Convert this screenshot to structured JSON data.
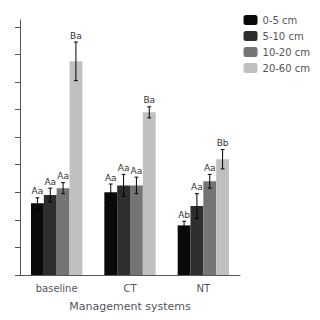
{
  "chart_data": {
    "type": "bar",
    "xlabel": "Management systems",
    "categories": [
      "baseline",
      "CT",
      "NT"
    ],
    "series": [
      {
        "name": "0-5 cm",
        "color": "#0a0a0a",
        "values": [
          0.52,
          0.6,
          0.36
        ],
        "errors": [
          0.04,
          0.06,
          0.03
        ],
        "annotations": [
          "Aa",
          "Aa",
          "Ab"
        ]
      },
      {
        "name": "5-10 cm",
        "color": "#2e2e2e",
        "values": [
          0.58,
          0.65,
          0.5
        ],
        "errors": [
          0.05,
          0.08,
          0.09
        ],
        "annotations": [
          "Aa",
          "Aa",
          "Aa"
        ]
      },
      {
        "name": "10-20 cm",
        "color": "#747474",
        "values": [
          0.63,
          0.65,
          0.68
        ],
        "errors": [
          0.04,
          0.06,
          0.05
        ],
        "annotations": [
          "Aa",
          "Aa",
          "Aa"
        ]
      },
      {
        "name": "20-60 cm",
        "color": "#c0c0c0",
        "values": [
          1.55,
          1.18,
          0.84
        ],
        "errors": [
          0.14,
          0.04,
          0.07
        ],
        "annotations": [
          "Ba",
          "Ba",
          "Bb"
        ]
      }
    ],
    "ylim": [
      0,
      1.85
    ],
    "yticks": [
      0,
      0.2,
      0.4,
      0.6,
      0.8,
      1.0,
      1.2,
      1.4,
      1.6,
      1.8
    ],
    "tick_labels": "x",
    "grid": false,
    "legend": "upper right"
  }
}
